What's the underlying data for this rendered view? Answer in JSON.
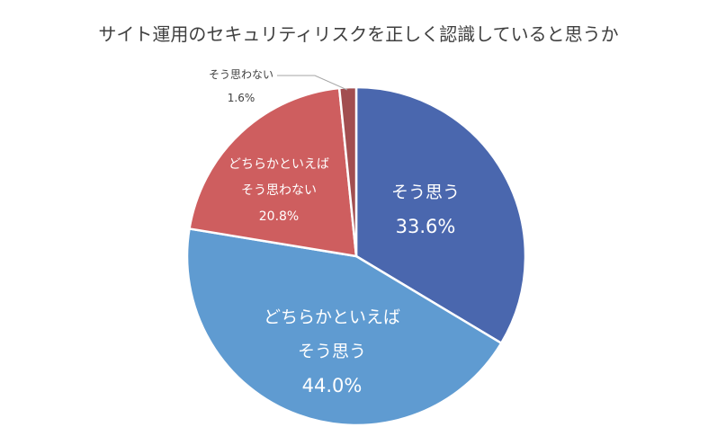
{
  "chart_data": {
    "type": "pie",
    "title": "サイト運用のセキュリティリスクを正しく認識していると思うか",
    "slices": [
      {
        "label_lines": [
          "そう思う"
        ],
        "value": 33.6,
        "value_label": "33.6%",
        "color": "#4A67AE"
      },
      {
        "label_lines": [
          "どちらかといえば",
          "そう思う"
        ],
        "value": 44.0,
        "value_label": "44.0%",
        "color": "#5F9BD1"
      },
      {
        "label_lines": [
          "どちらかといえば",
          "そう思わない"
        ],
        "value": 20.8,
        "value_label": "20.8%",
        "color": "#CE5E5F"
      },
      {
        "label_lines": [
          "そう思わない"
        ],
        "value": 1.6,
        "value_label": "1.6%",
        "color": "#A24E50"
      }
    ]
  }
}
